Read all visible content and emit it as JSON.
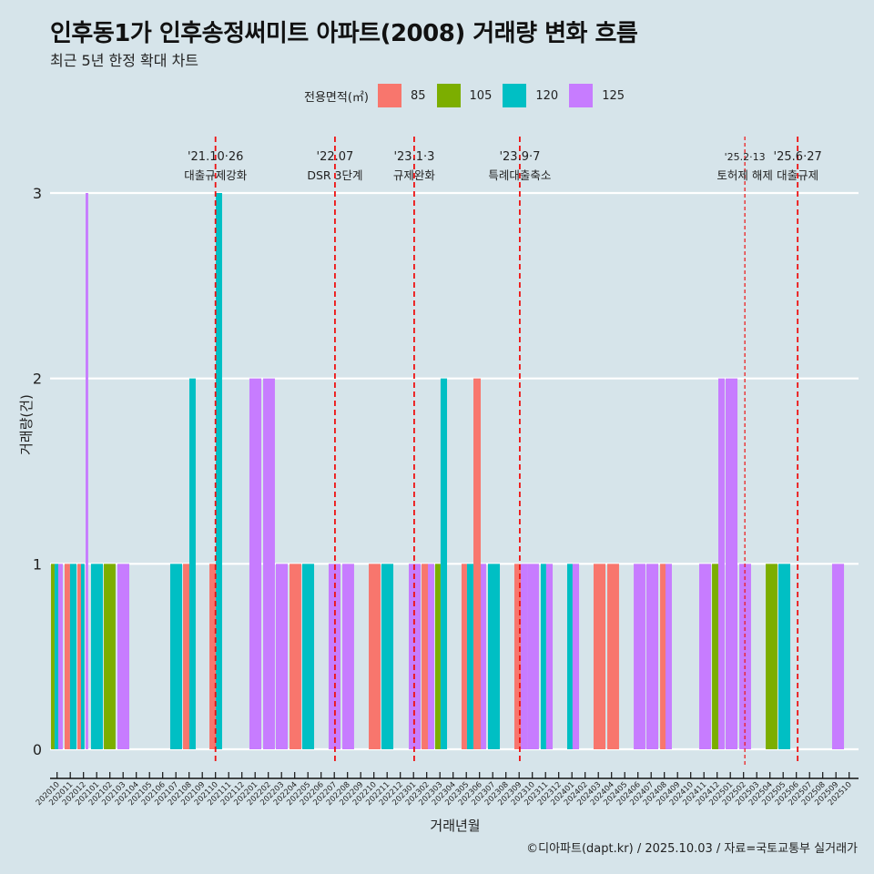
{
  "header": {
    "title": "인후동1가 인후송정써미트 아파트(2008) 거래량 변화 흐름",
    "subtitle": "최근 5년 한정 확대 차트"
  },
  "legend": {
    "title": "전용면적(㎡)",
    "items": [
      {
        "label": "85",
        "color": "#F8766D"
      },
      {
        "label": "105",
        "color": "#7CAE00"
      },
      {
        "label": "120",
        "color": "#00BFC4"
      },
      {
        "label": "125",
        "color": "#C77CFF"
      }
    ]
  },
  "caption": "©디아파트(dapt.kr) / 2025.10.03 / 자료=국토교통부 실거래가",
  "chart_data": {
    "type": "bar",
    "title": "인후동1가 인후송정써미트 아파트(2008) 거래량 변화 흐름",
    "subtitle": "최근 5년 한정 확대 차트",
    "xlabel": "거래년월",
    "ylabel": "거래량(건)",
    "ylim": [
      0,
      3
    ],
    "yticks": [
      0,
      1,
      2,
      3
    ],
    "grid": true,
    "legend_position": "top",
    "categories": [
      "202010",
      "202011",
      "202012",
      "202101",
      "202102",
      "202103",
      "202104",
      "202105",
      "202106",
      "202107",
      "202108",
      "202109",
      "202110",
      "202111",
      "202112",
      "202201",
      "202202",
      "202203",
      "202204",
      "202205",
      "202206",
      "202207",
      "202208",
      "202209",
      "202210",
      "202211",
      "202212",
      "202301",
      "202302",
      "202303",
      "202304",
      "202305",
      "202306",
      "202307",
      "202308",
      "202309",
      "202310",
      "202311",
      "202312",
      "202401",
      "202402",
      "202403",
      "202404",
      "202405",
      "202406",
      "202407",
      "202408",
      "202409",
      "202410",
      "202411",
      "202412",
      "202501",
      "202502",
      "202503",
      "202504",
      "202505",
      "202506",
      "202507",
      "202508",
      "202509",
      "202510"
    ],
    "bars": [
      {
        "start": -0.46,
        "end": -0.19,
        "area": "105",
        "value": 1
      },
      {
        "start": -0.19,
        "end": 0.09,
        "area": "120",
        "value": 1
      },
      {
        "start": 0.09,
        "end": 0.43,
        "area": "125",
        "value": 1
      },
      {
        "start": 0.57,
        "end": 0.98,
        "area": "85",
        "value": 1
      },
      {
        "start": 0.98,
        "end": 1.47,
        "area": "120",
        "value": 1
      },
      {
        "start": 1.54,
        "end": 1.81,
        "area": "85",
        "value": 1
      },
      {
        "start": 1.81,
        "end": 2.08,
        "area": "120",
        "value": 1
      },
      {
        "start": 2.16,
        "end": 2.36,
        "area": "125",
        "value": 3
      },
      {
        "start": 2.57,
        "end": 3.47,
        "area": "120",
        "value": 1
      },
      {
        "start": 3.54,
        "end": 4.43,
        "area": "105",
        "value": 1
      },
      {
        "start": 4.57,
        "end": 5.47,
        "area": "125",
        "value": 1
      },
      {
        "start": 8.57,
        "end": 9.47,
        "area": "120",
        "value": 1
      },
      {
        "start": 9.54,
        "end": 10.02,
        "area": "85",
        "value": 1
      },
      {
        "start": 10.02,
        "end": 10.5,
        "area": "120",
        "value": 2
      },
      {
        "start": 11.54,
        "end": 12.02,
        "area": "85",
        "value": 1
      },
      {
        "start": 12.02,
        "end": 12.5,
        "area": "120",
        "value": 3
      },
      {
        "start": 14.57,
        "end": 15.47,
        "area": "125",
        "value": 2
      },
      {
        "start": 15.61,
        "end": 16.5,
        "area": "125",
        "value": 2
      },
      {
        "start": 16.57,
        "end": 17.47,
        "area": "125",
        "value": 1
      },
      {
        "start": 17.61,
        "end": 18.5,
        "area": "85",
        "value": 1
      },
      {
        "start": 18.57,
        "end": 19.47,
        "area": "120",
        "value": 1
      },
      {
        "start": 20.57,
        "end": 21.47,
        "area": "125",
        "value": 1
      },
      {
        "start": 21.61,
        "end": 22.5,
        "area": "125",
        "value": 1
      },
      {
        "start": 23.61,
        "end": 24.5,
        "area": "85",
        "value": 1
      },
      {
        "start": 24.57,
        "end": 25.47,
        "area": "120",
        "value": 1
      },
      {
        "start": 26.64,
        "end": 27.54,
        "area": "125",
        "value": 1
      },
      {
        "start": 27.61,
        "end": 28.09,
        "area": "85",
        "value": 1
      },
      {
        "start": 28.09,
        "end": 28.57,
        "area": "125",
        "value": 1
      },
      {
        "start": 28.64,
        "end": 29.05,
        "area": "105",
        "value": 1
      },
      {
        "start": 29.05,
        "end": 29.54,
        "area": "120",
        "value": 2
      },
      {
        "start": 30.64,
        "end": 31.05,
        "area": "85",
        "value": 1
      },
      {
        "start": 31.05,
        "end": 31.54,
        "area": "120",
        "value": 1
      },
      {
        "start": 31.54,
        "end": 32.09,
        "area": "85",
        "value": 2
      },
      {
        "start": 32.09,
        "end": 32.5,
        "area": "125",
        "value": 1
      },
      {
        "start": 32.64,
        "end": 33.54,
        "area": "120",
        "value": 1
      },
      {
        "start": 34.64,
        "end": 35.12,
        "area": "85",
        "value": 1
      },
      {
        "start": 35.12,
        "end": 35.61,
        "area": "125",
        "value": 1
      },
      {
        "start": 35.61,
        "end": 36.5,
        "area": "125",
        "value": 1
      },
      {
        "start": 36.64,
        "end": 37.05,
        "area": "120",
        "value": 1
      },
      {
        "start": 37.05,
        "end": 37.54,
        "area": "125",
        "value": 1
      },
      {
        "start": 38.64,
        "end": 39.05,
        "area": "120",
        "value": 1
      },
      {
        "start": 39.05,
        "end": 39.54,
        "area": "125",
        "value": 1
      },
      {
        "start": 40.64,
        "end": 41.54,
        "area": "85",
        "value": 1
      },
      {
        "start": 41.68,
        "end": 42.57,
        "area": "85",
        "value": 1
      },
      {
        "start": 43.68,
        "end": 44.57,
        "area": "125",
        "value": 1
      },
      {
        "start": 44.64,
        "end": 45.54,
        "area": "125",
        "value": 1
      },
      {
        "start": 45.68,
        "end": 46.09,
        "area": "85",
        "value": 1
      },
      {
        "start": 46.09,
        "end": 46.57,
        "area": "125",
        "value": 1
      },
      {
        "start": 48.64,
        "end": 49.54,
        "area": "125",
        "value": 1
      },
      {
        "start": 49.61,
        "end": 50.09,
        "area": "105",
        "value": 1
      },
      {
        "start": 50.09,
        "end": 50.57,
        "area": "125",
        "value": 2
      },
      {
        "start": 50.64,
        "end": 51.54,
        "area": "125",
        "value": 2
      },
      {
        "start": 51.68,
        "end": 52.57,
        "area": "125",
        "value": 1
      },
      {
        "start": 53.68,
        "end": 54.57,
        "area": "105",
        "value": 1
      },
      {
        "start": 54.64,
        "end": 55.54,
        "area": "120",
        "value": 1
      },
      {
        "start": 58.71,
        "end": 59.61,
        "area": "125",
        "value": 1
      }
    ],
    "annotations": [
      {
        "date_label": "'21.10·26",
        "text": "대출규제강화",
        "x": 12.0
      },
      {
        "date_label": "'22.07",
        "text": "DSR 3단계",
        "x": 21.05
      },
      {
        "date_label": "'23.1·3",
        "text": "규제완화",
        "x": 27.05
      },
      {
        "date_label": "'23.9·7",
        "text": "특례대출축소",
        "x": 35.05
      },
      {
        "date_label": "'25.2·13",
        "text": "토허제 해제",
        "x": 52.1
      },
      {
        "date_label": "'25.6·27",
        "text": "대출규제",
        "x": 56.1
      }
    ]
  }
}
